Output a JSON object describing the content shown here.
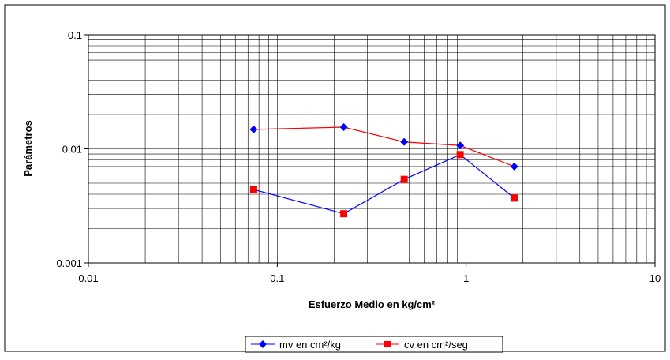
{
  "chart_data": {
    "type": "scatter",
    "title": "",
    "xlabel": "Esfuerzo Medio en kg/cm²",
    "ylabel": "Parámetros",
    "xscale": "log",
    "yscale": "log",
    "xlim": [
      0.01,
      10
    ],
    "ylim": [
      0.001,
      0.1
    ],
    "x_ticks": [
      0.01,
      0.1,
      1,
      10
    ],
    "x_tick_labels": [
      "0.01",
      "0.1",
      "1",
      "10"
    ],
    "y_ticks": [
      0.001,
      0.01,
      0.1
    ],
    "y_tick_labels": [
      "0.001",
      "0.01",
      "0.1"
    ],
    "grid": true,
    "legend_position": "bottom",
    "series": [
      {
        "name": "mv en cm²/kg",
        "x": [
          0.075,
          0.225,
          0.47,
          0.93,
          1.8
        ],
        "y": [
          0.0148,
          0.0155,
          0.0115,
          0.0107,
          0.007
        ],
        "marker": "diamond",
        "marker_color": "#0000ff",
        "line_color": "#0000ff"
      },
      {
        "name": "cv en cm²/seg",
        "x": [
          0.075,
          0.225,
          0.47,
          0.93,
          1.8
        ],
        "y": [
          0.0044,
          0.0027,
          0.0054,
          0.0089,
          0.0037
        ],
        "marker": "square",
        "marker_color": "#ff0000",
        "line_color": "#ff0000"
      }
    ]
  }
}
